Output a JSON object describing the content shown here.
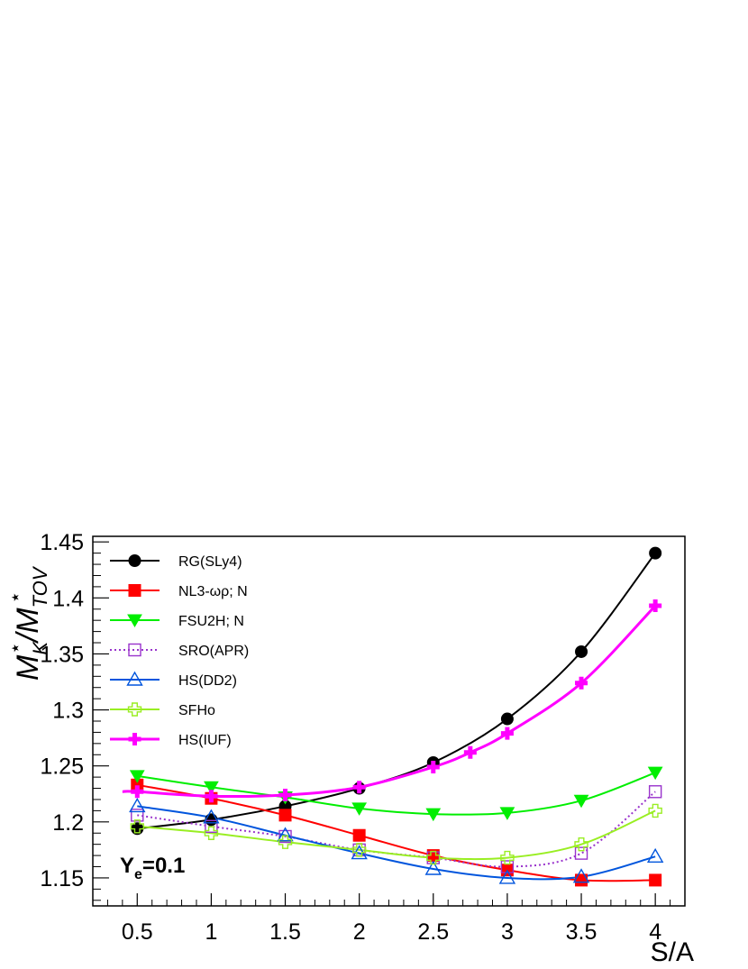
{
  "chart_data": {
    "type": "line",
    "xlabel": "S/A",
    "ylabel": {
      "base1": "M",
      "sub1": "K",
      "sup1": "⋆",
      "sep": "/M",
      "sub2": "TOV",
      "sup2": "⋆"
    },
    "xlim": [
      0.2,
      4.2
    ],
    "ylim": [
      1.125,
      1.455
    ],
    "x_ticks": [
      0.5,
      1,
      1.5,
      2,
      2.5,
      3,
      3.5,
      4
    ],
    "x_tick_labels": [
      "0.5",
      "1",
      "1.5",
      "2",
      "2.5",
      "3",
      "3.5",
      "4"
    ],
    "y_ticks": [
      1.15,
      1.2,
      1.25,
      1.3,
      1.35,
      1.4,
      1.45
    ],
    "y_tick_labels": [
      "1.15",
      "1.2",
      "1.25",
      "1.3",
      "1.35",
      "1.4",
      "1.45"
    ],
    "annotation": {
      "main": "Y",
      "sub": "e",
      "rest": "=0.1"
    },
    "legend_position": "top-left",
    "grid": false,
    "series": [
      {
        "name": "RG(SLy4)",
        "color": "#000000",
        "marker": "circle-filled",
        "dash": "solid",
        "x": [
          0.5,
          1,
          1.5,
          2,
          2.5,
          3,
          3.5,
          4
        ],
        "y": [
          1.194,
          1.202,
          1.214,
          1.23,
          1.253,
          1.292,
          1.352,
          1.44
        ]
      },
      {
        "name": "NL3-ωρ; N",
        "color": "#ff0000",
        "marker": "square-filled",
        "dash": "solid",
        "x": [
          0.5,
          1,
          1.5,
          2,
          2.5,
          3,
          3.5,
          4
        ],
        "y": [
          1.233,
          1.221,
          1.206,
          1.188,
          1.17,
          1.157,
          1.148,
          1.148
        ]
      },
      {
        "name": "FSU2H; N",
        "color": "#00ee00",
        "marker": "triangle-down-filled",
        "dash": "solid",
        "x": [
          0.5,
          1,
          1.5,
          2,
          2.5,
          3,
          3.5,
          4
        ],
        "y": [
          1.241,
          1.231,
          1.222,
          1.212,
          1.207,
          1.208,
          1.219,
          1.244
        ]
      },
      {
        "name": "SRO(APR)",
        "color": "#9933cc",
        "marker": "square-open",
        "dash": "dotted",
        "x": [
          0.5,
          1,
          1.5,
          2,
          2.5,
          3,
          3.5,
          4
        ],
        "y": [
          1.206,
          1.196,
          1.187,
          1.175,
          1.168,
          1.16,
          1.172,
          1.227
        ]
      },
      {
        "name": "HS(DD2)",
        "color": "#0055dd",
        "marker": "triangle-up-open",
        "dash": "solid",
        "x": [
          0.5,
          1,
          1.5,
          2,
          2.5,
          3,
          3.5,
          4
        ],
        "y": [
          1.214,
          1.204,
          1.188,
          1.172,
          1.158,
          1.15,
          1.151,
          1.169
        ]
      },
      {
        "name": "SFHo",
        "color": "#99ee22",
        "marker": "cross-open",
        "dash": "solid",
        "x": [
          0.5,
          1,
          1.5,
          2,
          2.5,
          3,
          3.5,
          4
        ],
        "y": [
          1.196,
          1.19,
          1.182,
          1.175,
          1.168,
          1.168,
          1.18,
          1.21
        ]
      },
      {
        "name": "HS(IUF)",
        "color": "#ff00ff",
        "marker": "cross-filled",
        "dash": "solid",
        "x": [
          0.4,
          0.5,
          1,
          1.5,
          2,
          2.5,
          2.75,
          3,
          3.5,
          4
        ],
        "y": [
          1.227,
          1.227,
          1.223,
          1.224,
          1.231,
          1.249,
          1.262,
          1.279,
          1.324,
          1.393
        ]
      }
    ]
  }
}
